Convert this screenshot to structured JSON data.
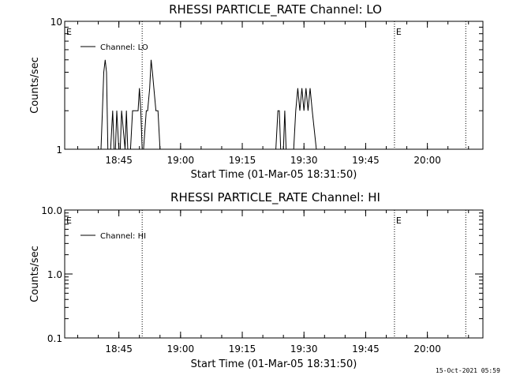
{
  "timestamp": "15-Oct-2021 05:59",
  "chart_data": [
    {
      "type": "line",
      "title": "RHESSI PARTICLE_RATE Channel: LO",
      "xlabel": "Start Time (01-Mar-05 18:31:50)",
      "ylabel": "Counts/sec",
      "yscale": "log",
      "ylim": [
        1,
        10
      ],
      "xlim": [
        "18:31:50",
        "20:13:30"
      ],
      "x_ticks": [
        "18:45",
        "19:00",
        "19:15",
        "19:30",
        "19:45",
        "20:00"
      ],
      "y_ticks": [
        "1",
        "10"
      ],
      "legend": {
        "label": "Channel: LO",
        "placement": "top-left"
      },
      "markers": [
        {
          "label": "E",
          "time": "18:31:50",
          "dotted": false
        },
        {
          "label": "",
          "time": "18:50:40",
          "dotted": true
        },
        {
          "label": "E",
          "time": "19:52:00",
          "dotted": true
        },
        {
          "label": "",
          "time": "20:09:20",
          "dotted": true
        }
      ],
      "series": [
        {
          "name": "Channel: LO",
          "x": [
            "18:39:40",
            "18:40:40",
            "18:41:00",
            "18:41:20",
            "18:41:40",
            "18:42:00",
            "18:42:20",
            "18:43:00",
            "18:43:30",
            "18:43:50",
            "18:44:10",
            "18:44:30",
            "18:45:00",
            "18:45:20",
            "18:45:40",
            "18:46:30",
            "18:46:50",
            "18:47:10",
            "18:47:50",
            "18:48:20",
            "18:48:40",
            "18:49:40",
            "18:50:00",
            "18:50:20",
            "18:50:40",
            "18:51:00",
            "18:51:40",
            "18:52:00",
            "18:52:30",
            "18:52:50",
            "18:53:10",
            "18:53:30",
            "18:54:00",
            "18:54:30",
            "18:55:00",
            "18:55:40",
            "19:23:10",
            "19:23:40",
            "19:24:00",
            "19:24:20",
            "19:25:00",
            "19:25:20",
            "19:25:40",
            "19:27:30",
            "19:28:00",
            "19:28:30",
            "19:29:00",
            "19:29:30",
            "19:30:00",
            "19:30:30",
            "19:31:00",
            "19:31:30",
            "19:32:00",
            "19:33:00"
          ],
          "y": [
            1,
            1,
            2,
            4,
            5,
            4,
            1,
            1,
            2,
            1,
            1,
            2,
            1,
            1,
            2,
            1,
            2,
            1,
            1,
            2,
            2,
            2,
            3,
            2,
            1,
            1,
            2,
            2,
            3,
            5,
            4,
            3,
            2,
            2,
            1,
            1,
            1,
            2,
            2,
            1,
            1,
            2,
            1,
            1,
            2,
            3,
            2,
            3,
            2,
            3,
            2,
            3,
            2,
            1
          ]
        }
      ]
    },
    {
      "type": "line",
      "title": "RHESSI PARTICLE_RATE Channel: HI",
      "xlabel": "Start Time (01-Mar-05 18:31:50)",
      "ylabel": "Counts/sec",
      "yscale": "log",
      "ylim": [
        0.1,
        10
      ],
      "xlim": [
        "18:31:50",
        "20:13:30"
      ],
      "x_ticks": [
        "18:45",
        "19:00",
        "19:15",
        "19:30",
        "19:45",
        "20:00"
      ],
      "y_ticks": [
        "0.1",
        "1.0",
        "10.0"
      ],
      "legend": {
        "label": "Channel: HI",
        "placement": "top-left"
      },
      "markers": [
        {
          "label": "E",
          "time": "18:31:50",
          "dotted": false
        },
        {
          "label": "",
          "time": "18:50:40",
          "dotted": true
        },
        {
          "label": "E",
          "time": "19:52:00",
          "dotted": true
        },
        {
          "label": "",
          "time": "20:09:20",
          "dotted": true
        }
      ],
      "series": [
        {
          "name": "Channel: HI",
          "x": [],
          "y": []
        }
      ]
    }
  ]
}
